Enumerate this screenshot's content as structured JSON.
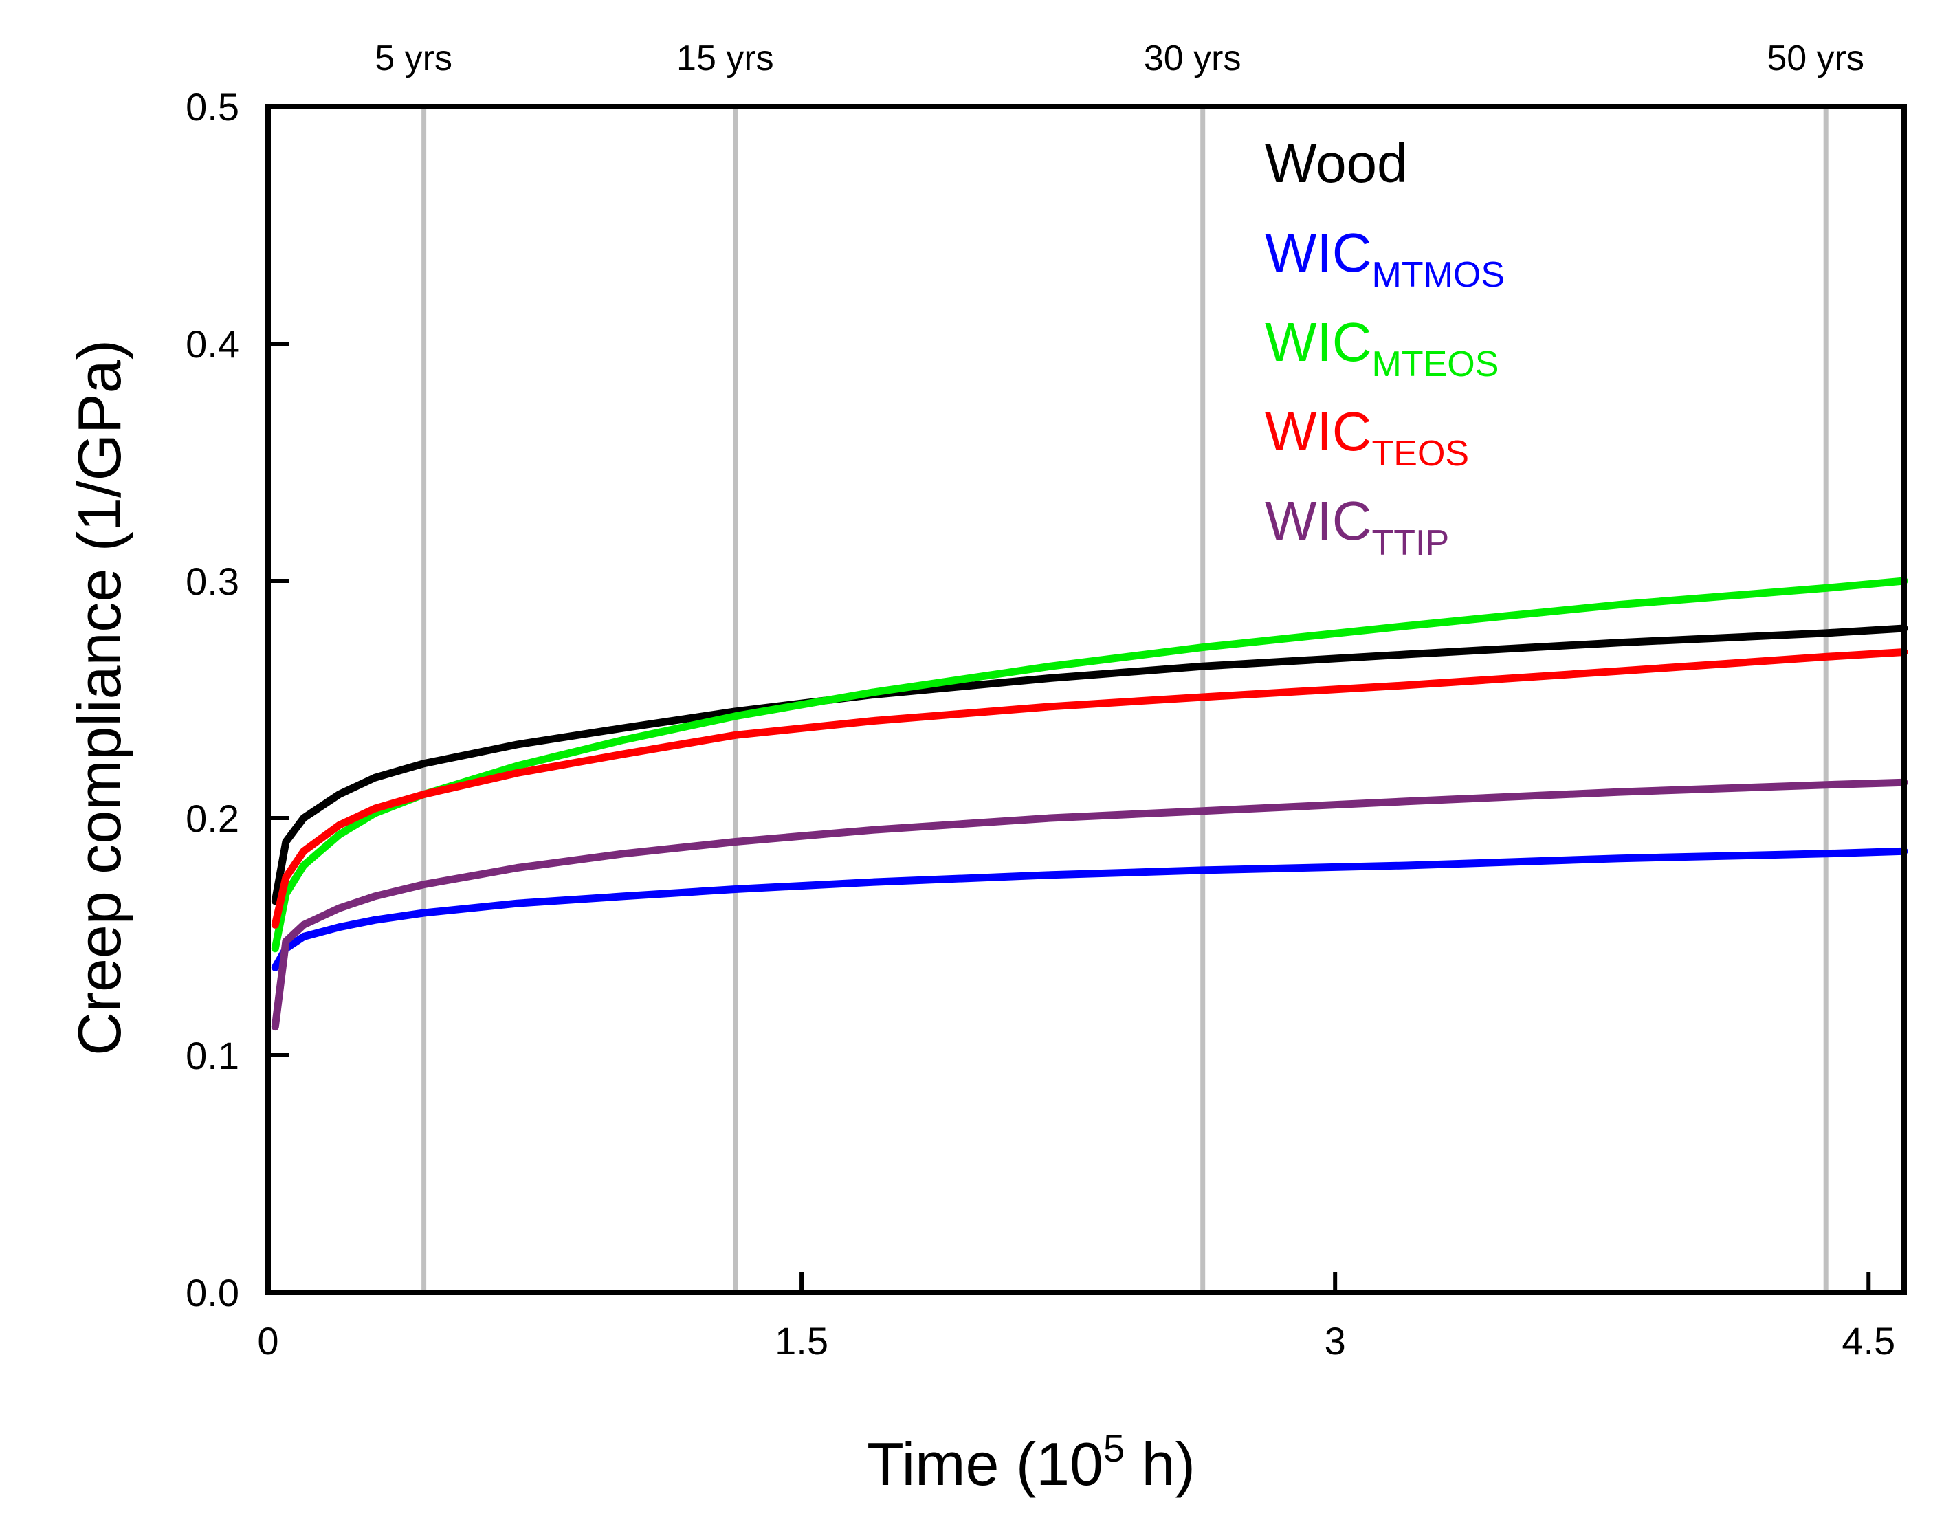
{
  "chart_data": {
    "type": "line",
    "title": "",
    "xlabel": "Time (10",
    "xlabel_exp": "5",
    "xlabel_suffix": " h)",
    "ylabel": "Creep compliance (1/GPa)",
    "xlim": [
      0,
      4.6
    ],
    "ylim": [
      0,
      0.5
    ],
    "xticks": [
      0,
      1.5,
      3,
      4.5
    ],
    "xtick_labels": [
      "0",
      "1.5",
      "3",
      "4.5"
    ],
    "yticks": [
      0,
      0.1,
      0.2,
      0.3,
      0.4,
      0.5
    ],
    "ytick_labels": [
      "0.0",
      "0.1",
      "0.2",
      "0.3",
      "0.4",
      "0.5"
    ],
    "year_markers": [
      {
        "label": "5 yrs",
        "x": 0.438
      },
      {
        "label": "15 yrs",
        "x": 1.314
      },
      {
        "label": "30 yrs",
        "x": 2.628
      },
      {
        "label": "50 yrs",
        "x": 4.38
      }
    ],
    "legend_position": "top-right",
    "series": [
      {
        "name": "Wood",
        "sub": "",
        "color": "#000000",
        "x": [
          0.02,
          0.05,
          0.1,
          0.2,
          0.3,
          0.438,
          0.7,
          1.0,
          1.314,
          1.7,
          2.2,
          2.628,
          3.2,
          3.8,
          4.38,
          4.6
        ],
        "y": [
          0.165,
          0.19,
          0.2,
          0.21,
          0.217,
          0.223,
          0.231,
          0.238,
          0.245,
          0.252,
          0.259,
          0.264,
          0.269,
          0.274,
          0.278,
          0.28
        ]
      },
      {
        "name": "WIC",
        "sub": "MTMOS",
        "color": "#0000ff",
        "x": [
          0.02,
          0.05,
          0.1,
          0.2,
          0.3,
          0.438,
          0.7,
          1.0,
          1.314,
          1.7,
          2.2,
          2.628,
          3.2,
          3.8,
          4.38,
          4.6
        ],
        "y": [
          0.137,
          0.145,
          0.15,
          0.154,
          0.157,
          0.16,
          0.164,
          0.167,
          0.17,
          0.173,
          0.176,
          0.178,
          0.18,
          0.183,
          0.185,
          0.186
        ]
      },
      {
        "name": "WIC",
        "sub": "MTEOS",
        "color": "#00ee00",
        "x": [
          0.02,
          0.05,
          0.1,
          0.2,
          0.3,
          0.438,
          0.7,
          1.0,
          1.314,
          1.7,
          2.2,
          2.628,
          3.2,
          3.8,
          4.38,
          4.6
        ],
        "y": [
          0.145,
          0.168,
          0.18,
          0.193,
          0.202,
          0.21,
          0.222,
          0.233,
          0.243,
          0.253,
          0.264,
          0.272,
          0.281,
          0.29,
          0.297,
          0.3
        ]
      },
      {
        "name": "WIC",
        "sub": "TEOS",
        "color": "#ff0000",
        "x": [
          0.02,
          0.05,
          0.1,
          0.2,
          0.3,
          0.438,
          0.7,
          1.0,
          1.314,
          1.7,
          2.2,
          2.628,
          3.2,
          3.8,
          4.38,
          4.6
        ],
        "y": [
          0.155,
          0.175,
          0.186,
          0.197,
          0.204,
          0.21,
          0.219,
          0.227,
          0.235,
          0.241,
          0.247,
          0.251,
          0.256,
          0.262,
          0.268,
          0.27
        ]
      },
      {
        "name": "WIC",
        "sub": "TTIP",
        "color": "#7a2a7a",
        "x": [
          0.02,
          0.05,
          0.1,
          0.2,
          0.3,
          0.438,
          0.7,
          1.0,
          1.314,
          1.7,
          2.2,
          2.628,
          3.2,
          3.8,
          4.38,
          4.6
        ],
        "y": [
          0.112,
          0.148,
          0.155,
          0.162,
          0.167,
          0.172,
          0.179,
          0.185,
          0.19,
          0.195,
          0.2,
          0.203,
          0.207,
          0.211,
          0.214,
          0.215
        ]
      }
    ]
  },
  "colors": {
    "axis": "#000000",
    "year_line": "#c0c0c0"
  }
}
